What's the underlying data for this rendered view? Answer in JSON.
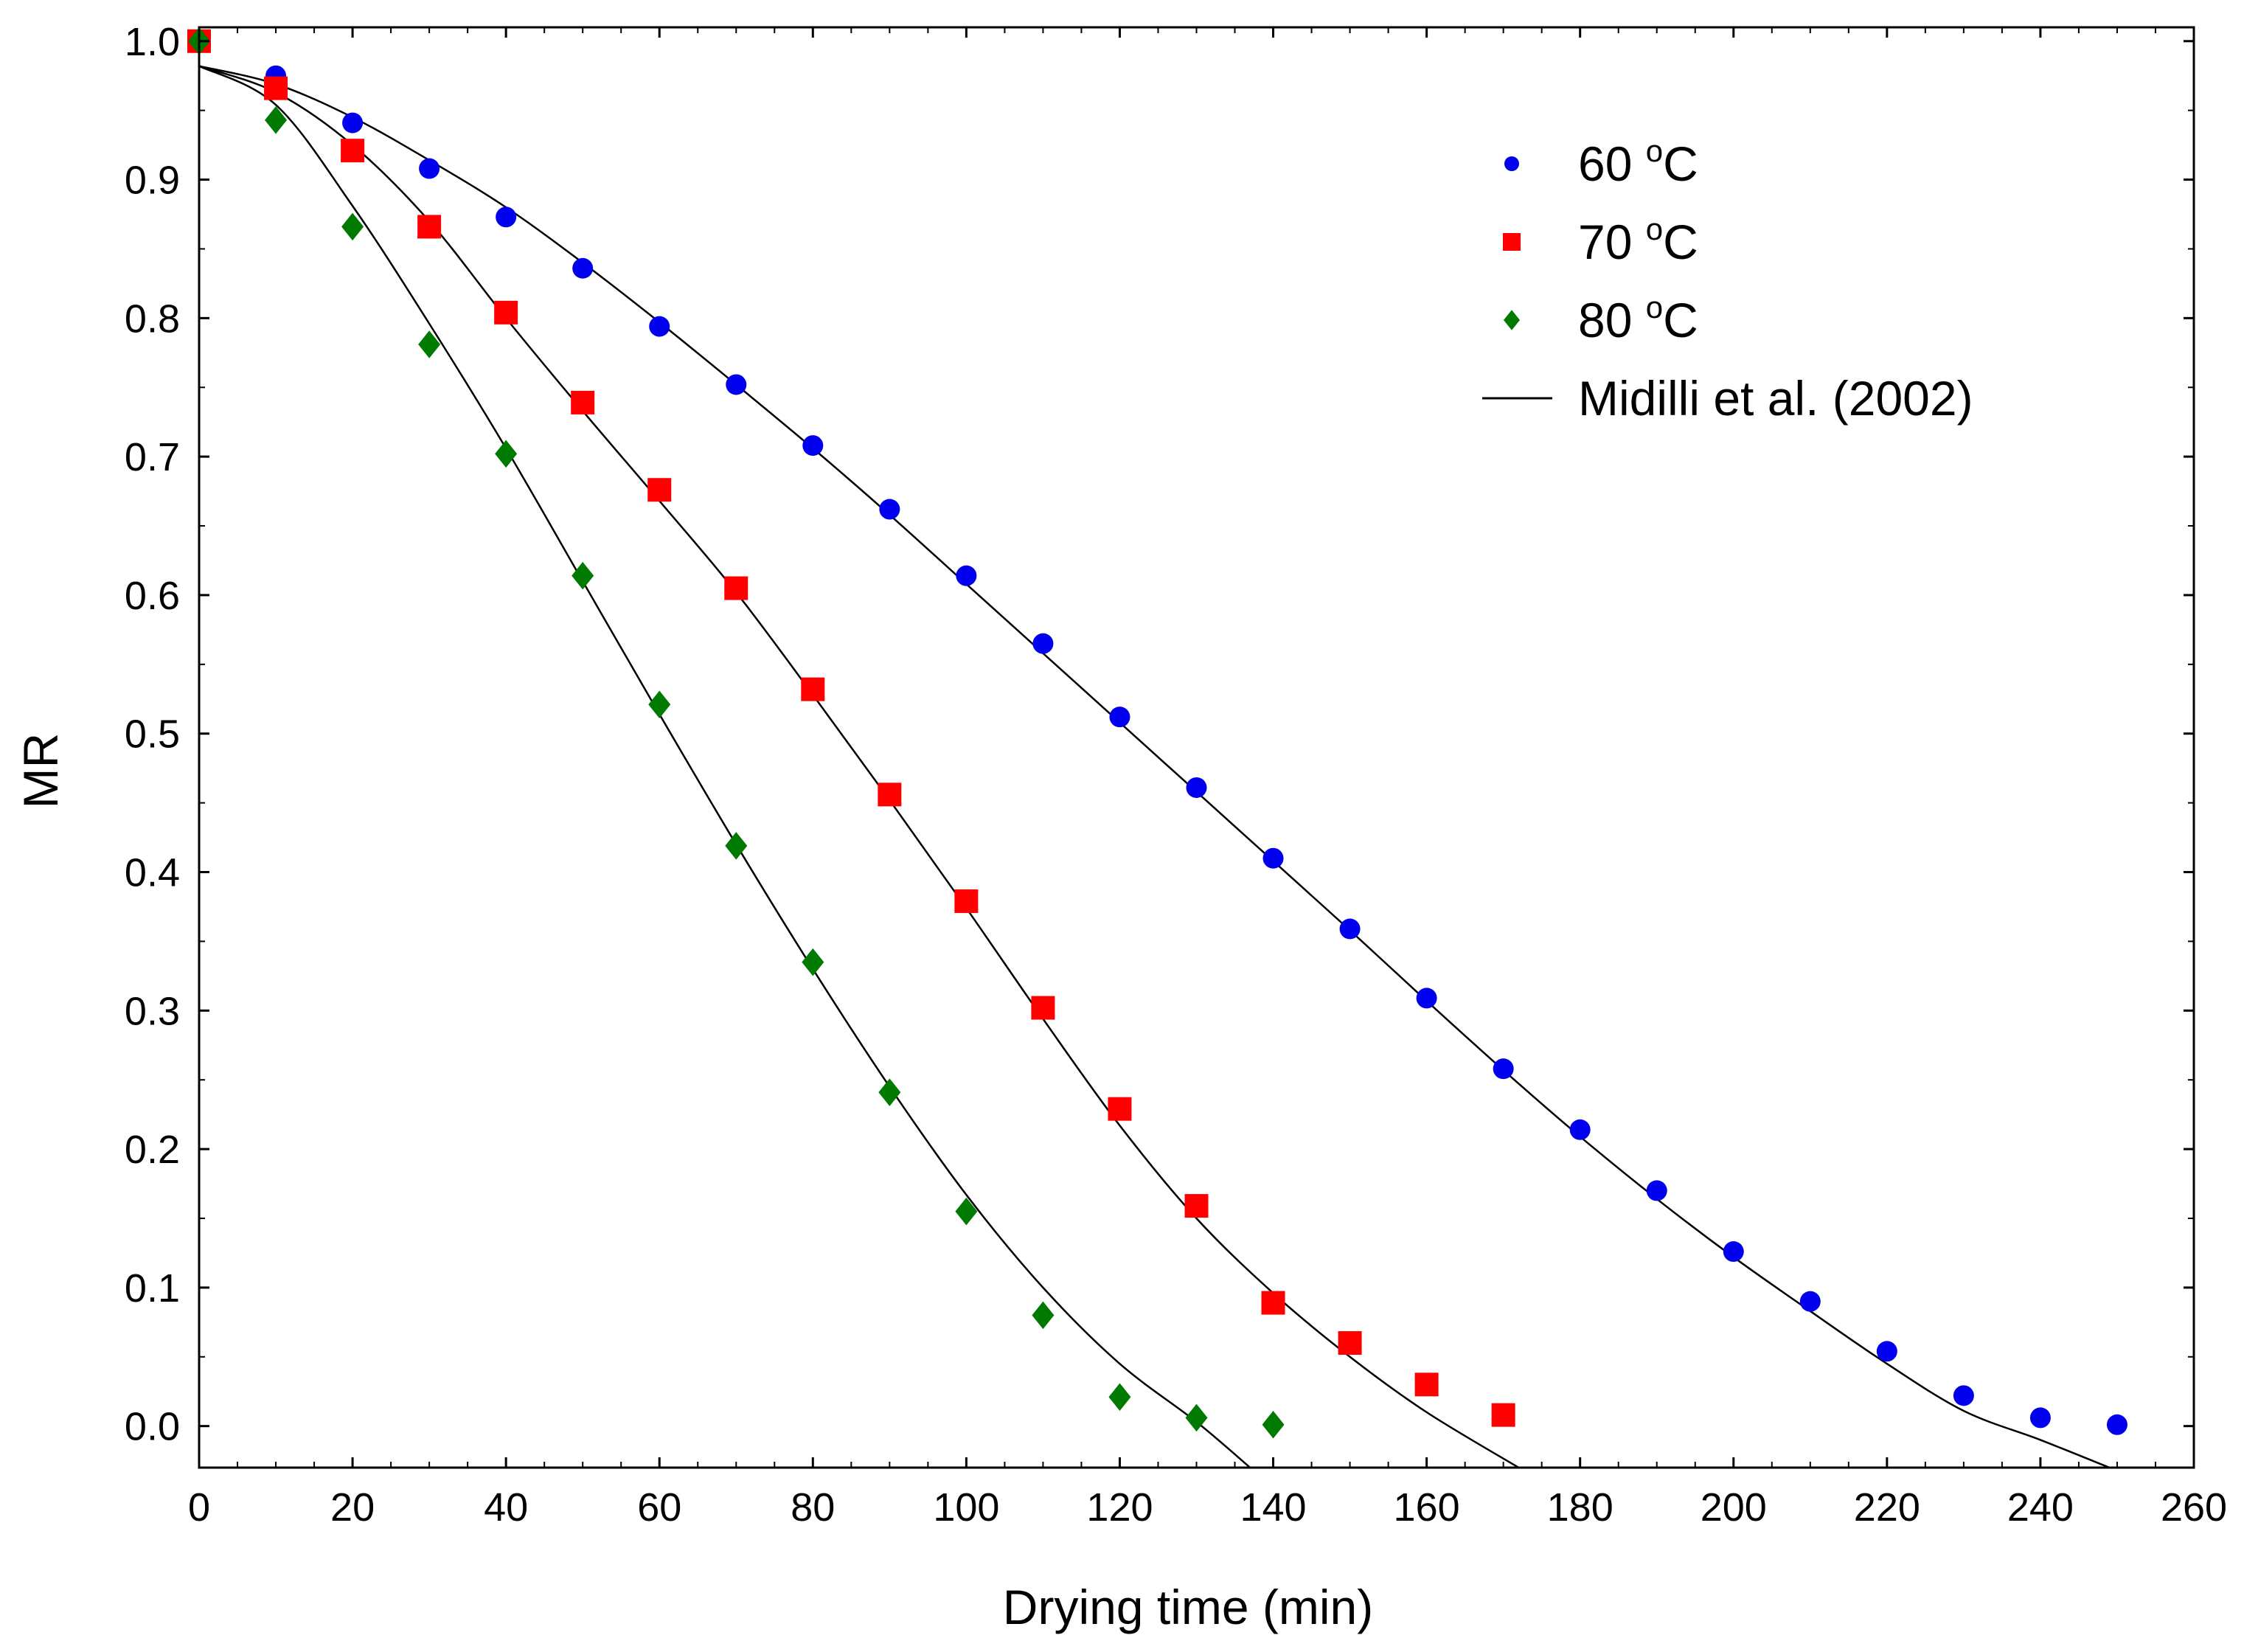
{
  "chart_data": {
    "type": "scatter",
    "title": "",
    "xlabel": "Drying time (min)",
    "ylabel": "MR",
    "xlim": [
      0,
      260
    ],
    "ylim": [
      -0.03,
      1.01
    ],
    "xticks": [
      0,
      20,
      40,
      60,
      80,
      100,
      120,
      140,
      160,
      180,
      200,
      220,
      240,
      260
    ],
    "yticks": [
      "0.0",
      "0.1",
      "0.2",
      "0.3",
      "0.4",
      "0.5",
      "0.6",
      "0.7",
      "0.8",
      "0.9",
      "1.0"
    ],
    "grid": false,
    "legend_position": "top-right",
    "series": [
      {
        "name": "60",
        "unit": "C",
        "unit_sup": "o",
        "marker": "circle",
        "color": "#0000ee",
        "x": [
          0,
          10,
          20,
          30,
          40,
          50,
          60,
          70,
          80,
          90,
          100,
          110,
          120,
          130,
          140,
          150,
          160,
          170,
          180,
          190,
          200,
          210,
          220,
          230,
          240,
          250
        ],
        "y": [
          1.0,
          0.975,
          0.941,
          0.908,
          0.873,
          0.836,
          0.794,
          0.752,
          0.708,
          0.662,
          0.614,
          0.565,
          0.512,
          0.461,
          0.41,
          0.359,
          0.309,
          0.258,
          0.214,
          0.17,
          0.126,
          0.09,
          0.054,
          0.022,
          0.006,
          0.001
        ]
      },
      {
        "name": "70",
        "unit": "C",
        "unit_sup": "o",
        "marker": "square",
        "color": "#ff0000",
        "x": [
          0,
          10,
          20,
          30,
          40,
          50,
          60,
          70,
          80,
          90,
          100,
          110,
          120,
          130,
          140,
          150,
          160,
          170
        ],
        "y": [
          1.0,
          0.966,
          0.921,
          0.866,
          0.804,
          0.739,
          0.676,
          0.605,
          0.532,
          0.456,
          0.379,
          0.302,
          0.229,
          0.159,
          0.089,
          0.06,
          0.03,
          0.008
        ]
      },
      {
        "name": "80",
        "unit": "C",
        "unit_sup": "o",
        "marker": "diamond",
        "color": "#007a00",
        "x": [
          0,
          10,
          20,
          30,
          40,
          50,
          60,
          70,
          80,
          90,
          100,
          110,
          120,
          130,
          140
        ],
        "y": [
          1.0,
          0.943,
          0.866,
          0.781,
          0.702,
          0.614,
          0.521,
          0.419,
          0.335,
          0.241,
          0.155,
          0.08,
          0.021,
          0.006,
          0.001
        ]
      }
    ],
    "fit_lines": [
      {
        "name": "Midilli et al. (2002)",
        "color": "#000000",
        "x": [
          0,
          10,
          20,
          30,
          40,
          50,
          60,
          70,
          80,
          90,
          100,
          110,
          120,
          130,
          140,
          150,
          160,
          170,
          180,
          190,
          200,
          210,
          220,
          230,
          240,
          249
        ],
        "y": [
          0.982,
          0.969,
          0.945,
          0.914,
          0.88,
          0.84,
          0.797,
          0.752,
          0.706,
          0.658,
          0.608,
          0.558,
          0.508,
          0.458,
          0.408,
          0.358,
          0.307,
          0.257,
          0.209,
          0.164,
          0.122,
          0.083,
          0.045,
          0.011,
          -0.01,
          -0.03
        ]
      },
      {
        "name": "Midilli et al. (2002)",
        "color": "#000000",
        "x": [
          0,
          10,
          20,
          30,
          40,
          50,
          60,
          70,
          80,
          90,
          100,
          110,
          120,
          130,
          140,
          150,
          160,
          172
        ],
        "y": [
          0.982,
          0.963,
          0.925,
          0.87,
          0.8,
          0.733,
          0.668,
          0.602,
          0.528,
          0.452,
          0.374,
          0.294,
          0.217,
          0.15,
          0.096,
          0.05,
          0.01,
          -0.03
        ]
      },
      {
        "name": "Midilli et al. (2002)",
        "color": "#000000",
        "x": [
          0,
          10,
          20,
          30,
          40,
          50,
          60,
          70,
          80,
          90,
          100,
          110,
          120,
          130,
          137
        ],
        "y": [
          0.982,
          0.954,
          0.881,
          0.796,
          0.706,
          0.61,
          0.514,
          0.42,
          0.33,
          0.245,
          0.167,
          0.1,
          0.045,
          0.003,
          -0.03
        ]
      }
    ],
    "legend": [
      {
        "label": "60",
        "unit": "C",
        "unit_sup": "o",
        "marker": "circle",
        "color": "#0000ee"
      },
      {
        "label": "70",
        "unit": "C",
        "unit_sup": "o",
        "marker": "square",
        "color": "#ff0000"
      },
      {
        "label": "80",
        "unit": "C",
        "unit_sup": "o",
        "marker": "diamond",
        "color": "#007a00"
      },
      {
        "label": "Midilli et al. (2002)",
        "marker": "line",
        "color": "#000000"
      }
    ]
  }
}
